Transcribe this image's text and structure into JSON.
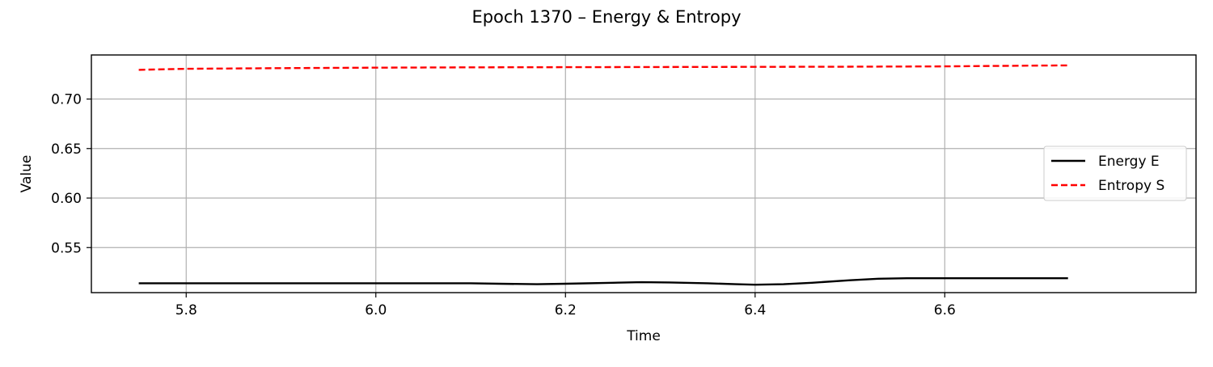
{
  "chart_data": {
    "type": "line",
    "title": "Epoch 1370 – Energy & Entropy",
    "xlabel": "Time",
    "ylabel": "Value",
    "xlim": [
      5.7,
      6.865
    ],
    "ylim": [
      0.5045,
      0.7445
    ],
    "xticks": [
      5.8,
      6.0,
      6.2,
      6.4,
      6.6
    ],
    "xtick_labels": [
      "5.8",
      "6.0",
      "6.2",
      "6.4",
      "6.6"
    ],
    "yticks": [
      0.55,
      0.6,
      0.65,
      0.7
    ],
    "ytick_labels": [
      "0.55",
      "0.60",
      "0.65",
      "0.70"
    ],
    "grid": true,
    "legend_position": "center-right",
    "series": [
      {
        "name": "Energy E",
        "color": "#000000",
        "style": "solid",
        "x": [
          5.75,
          5.85,
          5.95,
          6.05,
          6.1,
          6.13,
          6.17,
          6.2,
          6.25,
          6.28,
          6.31,
          6.35,
          6.38,
          6.4,
          6.43,
          6.46,
          6.5,
          6.53,
          6.56,
          6.6,
          6.65,
          6.7,
          6.73
        ],
        "y": [
          0.514,
          0.514,
          0.514,
          0.514,
          0.514,
          0.5135,
          0.513,
          0.5135,
          0.5145,
          0.515,
          0.5148,
          0.514,
          0.513,
          0.5125,
          0.513,
          0.5145,
          0.517,
          0.5185,
          0.519,
          0.519,
          0.519,
          0.519,
          0.519
        ]
      },
      {
        "name": "Entropy S",
        "color": "#ff0000",
        "style": "dashed",
        "x": [
          5.75,
          5.8,
          5.9,
          6.0,
          6.1,
          6.2,
          6.3,
          6.4,
          6.5,
          6.6,
          6.7,
          6.73
        ],
        "y": [
          0.7295,
          0.7305,
          0.7312,
          0.7317,
          0.732,
          0.7322,
          0.7323,
          0.7325,
          0.7327,
          0.733,
          0.7338,
          0.734
        ]
      }
    ]
  }
}
